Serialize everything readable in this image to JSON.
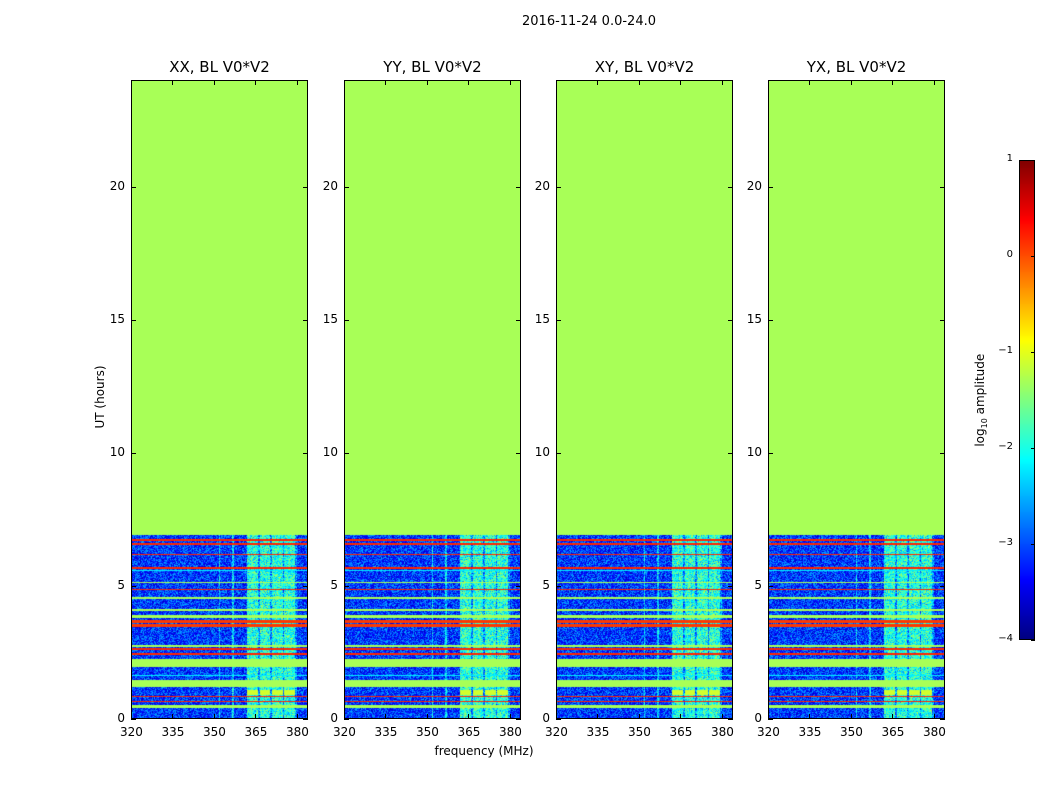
{
  "chart_data": {
    "type": "heatmap",
    "title": "2016-11-24 0.0-24.0",
    "panels": [
      {
        "title": "XX, BL V0*V2"
      },
      {
        "title": "YY, BL V0*V2"
      },
      {
        "title": "XY, BL V0*V2"
      },
      {
        "title": "YX, BL V0*V2"
      }
    ],
    "xlabel": "frequency (MHz)",
    "ylabel": "UT (hours)",
    "xlim": [
      320,
      384
    ],
    "ylim": [
      0,
      24
    ],
    "xticks": [
      320,
      335,
      350,
      365,
      380
    ],
    "yticks": [
      0,
      5,
      10,
      15,
      20
    ],
    "colormap": "jet",
    "colorbar": {
      "label_prefix": "log",
      "label_sub": "10",
      "label_suffix": " amplitude",
      "range": [
        -4,
        1
      ],
      "ticks": [
        1,
        0,
        -1,
        -2,
        -3,
        -4
      ]
    },
    "fill_value_after_hours": 6.9,
    "fill_value": -1.3,
    "noise_level": -3.1,
    "rfi_band_mhz": [
      362,
      380
    ],
    "bands": [
      {
        "from": 0.42,
        "to": 0.52,
        "value": -1.3
      },
      {
        "from": 0.62,
        "to": 0.68,
        "value": 0.2
      },
      {
        "from": 0.82,
        "to": 0.88,
        "value": 0.2
      },
      {
        "from": 1.2,
        "to": 1.45,
        "value": -1.3
      },
      {
        "from": 1.6,
        "to": 1.65,
        "value": -2.2
      },
      {
        "from": 1.95,
        "to": 2.25,
        "value": -1.3
      },
      {
        "from": 2.42,
        "to": 2.47,
        "value": 0.2
      },
      {
        "from": 2.6,
        "to": 2.65,
        "value": 0.2
      },
      {
        "from": 2.72,
        "to": 2.78,
        "value": -1.3
      },
      {
        "from": 3.45,
        "to": 3.55,
        "value": 0.1
      },
      {
        "from": 3.62,
        "to": 3.72,
        "value": 0.1
      },
      {
        "from": 3.8,
        "to": 3.9,
        "value": -1.3
      },
      {
        "from": 4.05,
        "to": 4.15,
        "value": -1.3
      },
      {
        "from": 4.5,
        "to": 4.6,
        "value": -1.3
      },
      {
        "from": 4.85,
        "to": 4.9,
        "value": 0.2
      },
      {
        "from": 5.1,
        "to": 5.15,
        "value": -1.3
      },
      {
        "from": 5.55,
        "to": 5.6,
        "value": -2.2
      },
      {
        "from": 5.65,
        "to": 5.7,
        "value": 0.2
      },
      {
        "from": 6.15,
        "to": 6.2,
        "value": 0.2
      },
      {
        "from": 6.55,
        "to": 6.6,
        "value": 0.2
      },
      {
        "from": 6.7,
        "to": 6.75,
        "value": 0.2
      }
    ]
  }
}
